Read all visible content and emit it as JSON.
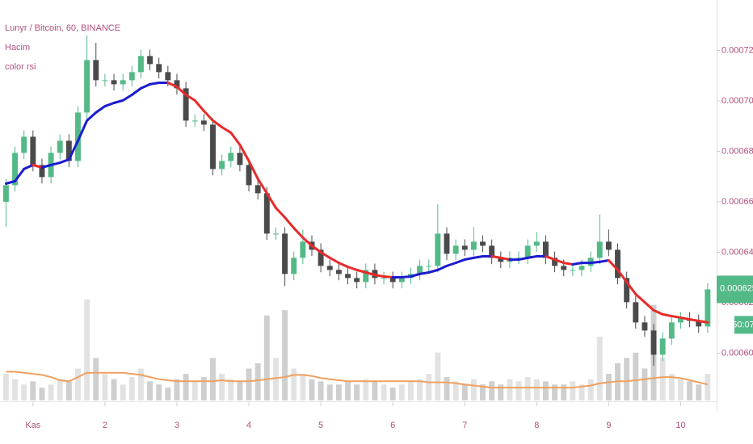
{
  "chart_data": {
    "type": "candlestick",
    "title": "Lunyr / Bitcoin, 60, BINANCE",
    "indicators": [
      "Hacim",
      "color rsi"
    ],
    "countdown": "50:07",
    "xlim": [
      -11,
      228
    ],
    "xticks": [
      {
        "value": 0,
        "label": "Kas"
      },
      {
        "value": 24,
        "label": "2"
      },
      {
        "value": 48,
        "label": "3"
      },
      {
        "value": 72,
        "label": "4"
      },
      {
        "value": 96,
        "label": "5"
      },
      {
        "value": 120,
        "label": "6"
      },
      {
        "value": 144,
        "label": "7"
      },
      {
        "value": 168,
        "label": "8"
      },
      {
        "value": 192,
        "label": "9"
      },
      {
        "value": 216,
        "label": "10"
      }
    ],
    "ylim": [
      0.00058,
      0.00074
    ],
    "yticks": [
      {
        "value": 0.0006,
        "label": "0.0006000"
      },
      {
        "value": 0.00062,
        "label": "0.0006200"
      },
      {
        "value": 0.00064,
        "label": "0.0006400"
      },
      {
        "value": 0.00066,
        "label": "0.0006600"
      },
      {
        "value": 0.00068,
        "label": "0.0006800"
      },
      {
        "value": 0.0007,
        "label": "0.0007000"
      },
      {
        "value": 0.00072,
        "label": "0.0007200"
      }
    ],
    "up_color": "#53b987",
    "down_color": "#4a4a4a",
    "ma_up_color": "#1c1cd0",
    "ma_down_color": "#e82a2a",
    "volume_color": "#cfcfcf",
    "volume_ma_color": "#f0a060",
    "price_label_color": "#53b987",
    "x": [
      -9,
      -6,
      -3,
      0,
      3,
      6,
      9,
      12,
      15,
      18,
      21,
      24,
      27,
      30,
      33,
      36,
      39,
      42,
      45,
      48,
      51,
      54,
      57,
      60,
      63,
      66,
      69,
      72,
      75,
      78,
      81,
      84,
      87,
      90,
      93,
      96,
      99,
      102,
      105,
      108,
      111,
      114,
      117,
      120,
      123,
      126,
      129,
      132,
      135,
      138,
      141,
      144,
      147,
      150,
      153,
      156,
      159,
      162,
      165,
      168,
      171,
      174,
      177,
      180,
      183,
      186,
      189,
      192,
      195,
      198,
      201,
      204,
      207,
      210,
      213,
      216,
      219,
      222,
      225
    ],
    "open": [
      0.00066,
      0.0006666,
      0.0006794,
      0.0006858,
      0.0006746,
      0.0006698,
      0.0006794,
      0.0006842,
      0.0006762,
      0.0006954,
      0.0007162,
      0.0007082,
      0.0007082,
      0.0007066,
      0.0007082,
      0.0007114,
      0.0007178,
      0.0007146,
      0.0007114,
      0.0007082,
      0.000705,
      0.0006922,
      0.0006922,
      0.0006906,
      0.000673,
      0.0006762,
      0.0006794,
      0.0006746,
      0.0006666,
      0.0006634,
      0.0006474,
      0.0006474,
      0.0006314,
      0.0006378,
      0.0006442,
      0.000641,
      0.0006346,
      0.000633,
      0.0006314,
      0.0006298,
      0.0006282,
      0.000633,
      0.0006298,
      0.0006298,
      0.0006282,
      0.0006298,
      0.0006314,
      0.0006346,
      0.0006346,
      0.0006474,
      0.0006394,
      0.0006426,
      0.000641,
      0.0006442,
      0.0006426,
      0.0006378,
      0.0006362,
      0.0006378,
      0.0006378,
      0.0006426,
      0.0006442,
      0.0006378,
      0.0006346,
      0.000633,
      0.000633,
      0.0006346,
      0.0006378,
      0.0006442,
      0.000641,
      0.0006298,
      0.0006202,
      0.0006122,
      0.000609,
      0.0005994,
      0.0006058,
      0.0006122,
      0.0006138,
      0.0006128,
      0.0006106
    ],
    "high": [
      0.0006691,
      0.0006819,
      0.0006883,
      0.0006883,
      0.0006771,
      0.0006819,
      0.0006867,
      0.0006867,
      0.0006979,
      0.000726,
      0.000723,
      0.0007107,
      0.0007107,
      0.0007107,
      0.0007139,
      0.0007203,
      0.0007203,
      0.0007171,
      0.0007139,
      0.0007107,
      0.0007075,
      0.0006947,
      0.0006947,
      0.0006931,
      0.0006787,
      0.0006819,
      0.0006819,
      0.0006771,
      0.0006691,
      0.0006659,
      0.0006499,
      0.0006499,
      0.0006403,
      0.000649,
      0.0006467,
      0.0006435,
      0.0006371,
      0.0006355,
      0.0006339,
      0.0006323,
      0.0006355,
      0.0006355,
      0.0006323,
      0.0006323,
      0.0006323,
      0.0006339,
      0.0006371,
      0.0006371,
      0.000659,
      0.0006499,
      0.0006451,
      0.0006451,
      0.00065,
      0.0006467,
      0.0006451,
      0.0006403,
      0.0006403,
      0.0006403,
      0.0006451,
      0.000648,
      0.0006467,
      0.0006403,
      0.0006371,
      0.0006355,
      0.0006371,
      0.0006403,
      0.000655,
      0.000649,
      0.0006435,
      0.0006323,
      0.0006227,
      0.0006147,
      0.0006115,
      0.0006083,
      0.0006147,
      0.0006163,
      0.0006163,
      0.0006153,
      0.0006278
    ],
    "low": [
      0.00065,
      0.0006641,
      0.0006769,
      0.0006721,
      0.0006673,
      0.0006673,
      0.0006769,
      0.0006737,
      0.0006737,
      0.0006929,
      0.0007057,
      0.0007057,
      0.0007041,
      0.0007041,
      0.0007057,
      0.0007089,
      0.0007121,
      0.0007089,
      0.0007057,
      0.0007025,
      0.0006897,
      0.0006897,
      0.0006881,
      0.0006705,
      0.0006705,
      0.0006737,
      0.0006721,
      0.0006641,
      0.0006609,
      0.0006449,
      0.0006449,
      0.0006266,
      0.0006289,
      0.0006353,
      0.0006385,
      0.0006321,
      0.0006305,
      0.0006289,
      0.0006273,
      0.0006257,
      0.0006257,
      0.0006273,
      0.0006273,
      0.0006257,
      0.0006257,
      0.0006273,
      0.0006289,
      0.0006321,
      0.0006321,
      0.0006369,
      0.0006369,
      0.0006385,
      0.0006385,
      0.0006401,
      0.0006353,
      0.0006337,
      0.0006337,
      0.0006353,
      0.0006353,
      0.0006401,
      0.0006353,
      0.0006321,
      0.0006305,
      0.0006305,
      0.0006305,
      0.0006321,
      0.0006353,
      0.0006385,
      0.0006273,
      0.0006177,
      0.0006097,
      0.0006065,
      0.000595,
      0.0005969,
      0.0006033,
      0.0006097,
      0.0006103,
      0.0006081,
      0.0006081
    ],
    "close": [
      0.0006666,
      0.0006794,
      0.0006858,
      0.0006746,
      0.0006698,
      0.0006794,
      0.0006842,
      0.0006762,
      0.0006954,
      0.0007162,
      0.0007082,
      0.0007082,
      0.0007066,
      0.0007082,
      0.0007114,
      0.0007178,
      0.0007146,
      0.0007114,
      0.0007082,
      0.000705,
      0.0006922,
      0.0006922,
      0.0006906,
      0.000673,
      0.0006762,
      0.0006794,
      0.0006746,
      0.0006666,
      0.0006634,
      0.0006474,
      0.0006474,
      0.0006314,
      0.0006378,
      0.0006442,
      0.000641,
      0.0006346,
      0.000633,
      0.0006314,
      0.0006298,
      0.0006282,
      0.000633,
      0.0006298,
      0.0006298,
      0.0006282,
      0.0006298,
      0.0006314,
      0.0006346,
      0.0006346,
      0.0006474,
      0.0006394,
      0.0006426,
      0.000641,
      0.0006442,
      0.0006426,
      0.0006378,
      0.0006362,
      0.0006378,
      0.0006378,
      0.0006426,
      0.0006442,
      0.0006378,
      0.0006346,
      0.000633,
      0.000633,
      0.0006346,
      0.0006378,
      0.0006442,
      0.000641,
      0.0006298,
      0.0006202,
      0.0006122,
      0.000609,
      0.0005994,
      0.0006058,
      0.0006122,
      0.0006138,
      0.0006128,
      0.0006106,
      0.0006253
    ],
    "ma": [
      0.0006672,
      0.0006682,
      0.000673,
      0.0006746,
      0.0006736,
      0.0006746,
      0.0006755,
      0.0006768,
      0.0006842,
      0.0006922,
      0.0006954,
      0.0006979,
      0.0006992,
      0.0007002,
      0.0007024,
      0.000705,
      0.0007066,
      0.0007072,
      0.0007072,
      0.0007056,
      0.0007024,
      0.0007002,
      0.000696,
      0.0006922,
      0.0006896,
      0.0006874,
      0.0006826,
      0.0006762,
      0.0006691,
      0.0006634,
      0.0006576,
      0.0006538,
      0.0006496,
      0.0006458,
      0.0006426,
      0.00064,
      0.0006378,
      0.0006358,
      0.0006342,
      0.000633,
      0.000632,
      0.000631,
      0.0006304,
      0.0006301,
      0.0006301,
      0.0006304,
      0.0006314,
      0.000632,
      0.000633,
      0.0006346,
      0.0006358,
      0.0006371,
      0.0006378,
      0.0006384,
      0.0006384,
      0.0006378,
      0.0006371,
      0.0006371,
      0.0006378,
      0.0006384,
      0.0006384,
      0.0006371,
      0.0006358,
      0.0006352,
      0.0006358,
      0.0006358,
      0.0006362,
      0.0006368,
      0.000633,
      0.0006282,
      0.0006234,
      0.0006202,
      0.000617,
      0.0006154,
      0.0006147,
      0.0006141,
      0.0006134,
      0.0006128,
      0.0006122
    ],
    "volume": [
      25,
      20,
      15,
      18,
      12,
      15,
      20,
      18,
      30,
      95,
      40,
      25,
      20,
      15,
      22,
      30,
      18,
      15,
      12,
      20,
      25,
      18,
      22,
      40,
      25,
      20,
      18,
      30,
      35,
      80,
      40,
      85,
      30,
      25,
      20,
      18,
      15,
      15,
      18,
      15,
      20,
      18,
      15,
      12,
      15,
      18,
      20,
      25,
      45,
      22,
      18,
      15,
      20,
      15,
      18,
      15,
      20,
      18,
      22,
      20,
      18,
      15,
      15,
      18,
      15,
      20,
      60,
      25,
      35,
      40,
      45,
      30,
      90,
      40,
      25,
      20,
      18,
      15,
      25
    ],
    "volume_ma": [
      27,
      27,
      26,
      25,
      24,
      22,
      19,
      18,
      22,
      26,
      26,
      26,
      26,
      26,
      25,
      24,
      22,
      20,
      19,
      18,
      18,
      18,
      18,
      18,
      19,
      18,
      18,
      18,
      19,
      20,
      21,
      22,
      24,
      24,
      23,
      21,
      20,
      19,
      18,
      18,
      18,
      18,
      18,
      18,
      18,
      18,
      18,
      17,
      17,
      17,
      16,
      15,
      14,
      13,
      12,
      12,
      12,
      12,
      12,
      12,
      12,
      12,
      12,
      12,
      13,
      14,
      16,
      17,
      18,
      18,
      19,
      20,
      21,
      22,
      22,
      21,
      19,
      17,
      15
    ]
  }
}
